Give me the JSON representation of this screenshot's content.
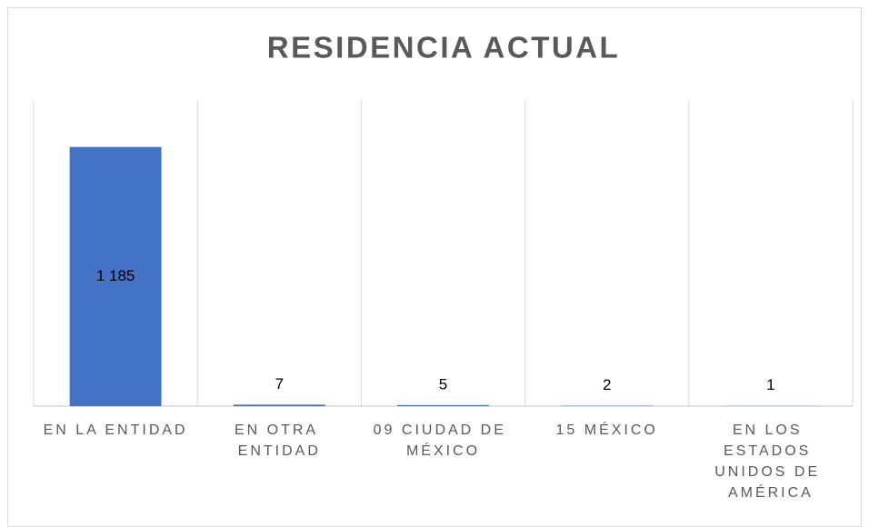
{
  "chart_data": {
    "type": "bar",
    "title": "RESIDENCIA ACTUAL",
    "categories": [
      "EN LA ENTIDAD",
      "EN OTRA ENTIDAD",
      "09 CIUDAD DE MÉXICO",
      "15 MÉXICO",
      "EN LOS ESTADOS UNIDOS DE AMÉRICA"
    ],
    "values": [
      1185,
      7,
      5,
      2,
      1
    ],
    "value_labels": [
      "1 185",
      "7",
      "5",
      "2",
      "1"
    ],
    "color": "#4472c4",
    "ylim": [
      0,
      1400
    ]
  }
}
